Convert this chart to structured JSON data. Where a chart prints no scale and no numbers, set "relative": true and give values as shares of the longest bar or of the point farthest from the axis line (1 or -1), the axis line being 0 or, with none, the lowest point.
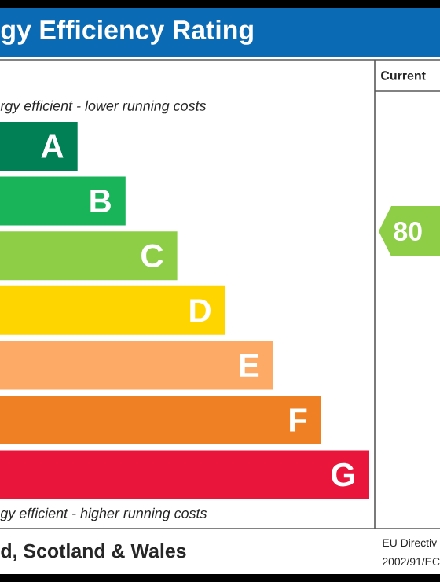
{
  "chart_data": {
    "type": "bar",
    "orientation": "horizontal",
    "relative": true,
    "title": "gy Efficiency Rating",
    "categories": [
      "A",
      "B",
      "C",
      "D",
      "E",
      "F",
      "G"
    ],
    "values": [
      0.21,
      0.34,
      0.48,
      0.61,
      0.74,
      0.87,
      1
    ],
    "colors": [
      "#008054",
      "#19b459",
      "#8dce46",
      "#ffd500",
      "#fcaa65",
      "#ef8023",
      "#e9153b"
    ],
    "annotations": [
      "Current",
      "rgy efficient - lower running costs",
      "gy efficient - higher running costs",
      "d, Scotland & Wales",
      "EU Directiv",
      "2002/91/EC",
      "80"
    ]
  }
}
